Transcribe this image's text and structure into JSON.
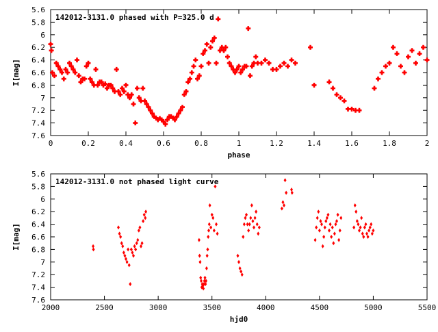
{
  "chart_data": [
    {
      "type": "scatter",
      "title": "142012-3131.0 phased with P=325.0 d",
      "xlabel": "phase",
      "ylabel": "I[mag]",
      "xlim": [
        0,
        2
      ],
      "ylim": [
        7.6,
        5.6
      ],
      "y_inverted": true,
      "grid": false,
      "xticks": [
        "0",
        "0.2",
        "0.4",
        "0.6",
        "0.8",
        "1",
        "1.2",
        "1.4",
        "1.6",
        "1.8",
        "2"
      ],
      "yticks": [
        "5.6",
        "5.8",
        "6",
        "6.2",
        "6.4",
        "6.6",
        "6.8",
        "7",
        "7.2",
        "7.4",
        "7.6"
      ],
      "marker_color": "#ff0000",
      "marker": "plus-heavy",
      "phases": [
        0.0,
        0.004,
        0.009,
        0.02,
        0.03,
        0.04,
        0.05,
        0.06,
        0.07,
        0.08,
        0.09,
        0.1,
        0.11,
        0.12,
        0.13,
        0.14,
        0.15,
        0.16,
        0.17,
        0.18,
        0.19,
        0.2,
        0.21,
        0.22,
        0.23,
        0.24,
        0.25,
        0.26,
        0.27,
        0.28,
        0.29,
        0.3,
        0.31,
        0.32,
        0.33,
        0.34,
        0.35,
        0.36,
        0.37,
        0.38,
        0.39,
        0.4,
        0.41,
        0.42,
        0.43,
        0.44,
        0.45,
        0.46,
        0.47,
        0.48,
        0.49,
        0.5,
        0.51,
        0.52,
        0.53,
        0.54,
        0.55,
        0.56,
        0.57,
        0.58,
        0.59,
        0.6,
        0.61,
        0.62,
        0.63,
        0.64,
        0.65,
        0.66,
        0.67,
        0.68,
        0.69,
        0.7,
        0.71,
        0.72,
        0.73,
        0.74,
        0.75,
        0.76,
        0.77,
        0.78,
        0.79,
        0.8,
        0.81,
        0.82,
        0.83,
        0.84,
        0.85,
        0.86,
        0.87,
        0.88,
        0.89,
        0.9,
        0.91,
        0.92,
        0.93,
        0.94,
        0.95,
        0.96,
        0.97,
        0.98,
        0.99,
        1.0,
        1.01,
        1.02,
        1.03,
        1.04,
        1.05,
        1.06,
        1.07,
        1.08,
        1.09,
        1.1,
        1.12,
        1.14,
        1.16,
        1.18,
        1.2,
        1.22,
        1.24,
        1.26,
        1.28,
        1.3,
        1.38,
        1.4,
        1.48,
        1.5,
        1.52,
        1.54,
        1.56,
        1.58,
        1.6,
        1.62,
        1.64,
        1.72,
        1.74,
        1.76,
        1.78,
        1.8,
        1.82,
        1.84,
        1.86,
        1.88,
        1.9,
        1.92,
        1.94,
        1.96,
        1.98,
        2.0
      ],
      "magnitudes": [
        6.15,
        6.25,
        6.6,
        6.65,
        6.45,
        6.5,
        6.55,
        6.6,
        6.7,
        6.55,
        6.6,
        6.45,
        6.5,
        6.55,
        6.6,
        6.4,
        6.65,
        6.75,
        6.7,
        6.7,
        6.5,
        6.45,
        6.7,
        6.75,
        6.8,
        6.55,
        6.8,
        6.75,
        6.75,
        6.8,
        6.78,
        6.85,
        6.8,
        6.8,
        6.85,
        6.9,
        6.55,
        6.9,
        6.95,
        6.85,
        6.9,
        6.8,
        6.95,
        7.0,
        6.95,
        7.1,
        7.4,
        6.85,
        7.0,
        7.05,
        6.85,
        7.05,
        7.1,
        7.15,
        7.2,
        7.25,
        7.3,
        7.32,
        7.35,
        7.33,
        7.35,
        7.38,
        7.42,
        7.35,
        7.3,
        7.3,
        7.32,
        7.35,
        7.3,
        7.25,
        7.2,
        7.15,
        6.95,
        6.9,
        6.75,
        6.7,
        6.6,
        6.5,
        6.4,
        6.7,
        6.65,
        6.5,
        6.3,
        6.25,
        6.15,
        6.45,
        6.2,
        6.1,
        6.05,
        6.45,
        5.75,
        6.25,
        6.2,
        6.25,
        6.2,
        6.35,
        6.45,
        6.5,
        6.55,
        6.6,
        6.55,
        6.5,
        6.6,
        6.55,
        6.5,
        6.5,
        5.9,
        6.65,
        6.5,
        6.45,
        6.35,
        6.45,
        6.45,
        6.4,
        6.45,
        6.55,
        6.55,
        6.5,
        6.45,
        6.5,
        6.4,
        6.45,
        6.2,
        6.8,
        6.75,
        6.85,
        6.95,
        7.0,
        7.05,
        7.18,
        7.18,
        7.2,
        7.2,
        6.85,
        6.7,
        6.6,
        6.5,
        6.45,
        6.2,
        6.3,
        6.5,
        6.6,
        6.35,
        6.25,
        6.45,
        6.3,
        6.2,
        6.4,
        6.45
      ]
    },
    {
      "type": "scatter",
      "title": "142012-3131.0 not phased light curve",
      "xlabel": "hjd0",
      "ylabel": "I[mag]",
      "xlim": [
        2000,
        5500
      ],
      "ylim": [
        7.6,
        5.6
      ],
      "y_inverted": true,
      "grid": false,
      "xticks": [
        "2000",
        "2500",
        "3000",
        "3500",
        "4000",
        "4500",
        "5000",
        "5500"
      ],
      "yticks": [
        "5.6",
        "5.8",
        "6",
        "6.2",
        "6.4",
        "6.6",
        "6.8",
        "7",
        "7.2",
        "7.4",
        "7.6"
      ],
      "marker_color": "#ff0000",
      "marker": "diamond",
      "hjd": [
        2395,
        2398,
        2630,
        2640,
        2650,
        2660,
        2670,
        2680,
        2690,
        2700,
        2710,
        2720,
        2730,
        2740,
        2750,
        2760,
        2770,
        2780,
        2790,
        2800,
        2810,
        2820,
        2830,
        2840,
        2850,
        2860,
        2870,
        2880,
        2885,
        3380,
        3385,
        3390,
        3395,
        3400,
        3405,
        3410,
        3415,
        3420,
        3425,
        3430,
        3435,
        3440,
        3445,
        3450,
        3455,
        3460,
        3465,
        3470,
        3475,
        3480,
        3490,
        3500,
        3510,
        3520,
        3530,
        3540,
        3550,
        3740,
        3750,
        3760,
        3770,
        3780,
        3790,
        3800,
        3810,
        3820,
        3830,
        3840,
        3850,
        3860,
        3870,
        3880,
        3890,
        3900,
        3910,
        3920,
        3930,
        3940,
        4150,
        4160,
        4170,
        4180,
        4190,
        4240,
        4245,
        4460,
        4470,
        4480,
        4490,
        4500,
        4510,
        4520,
        4530,
        4540,
        4550,
        4560,
        4570,
        4580,
        4590,
        4600,
        4610,
        4620,
        4630,
        4640,
        4650,
        4660,
        4670,
        4680,
        4690,
        4700,
        4820,
        4830,
        4840,
        4850,
        4860,
        4870,
        4880,
        4890,
        4900,
        4910,
        4920,
        4930,
        4940,
        4950,
        4960,
        4970,
        4980,
        4990,
        5000
      ],
      "magnitudes": [
        6.75,
        6.8,
        6.45,
        6.55,
        6.6,
        6.7,
        6.75,
        6.85,
        6.9,
        6.95,
        7.0,
        6.8,
        7.05,
        7.35,
        6.8,
        6.85,
        6.9,
        6.75,
        6.8,
        6.7,
        6.65,
        6.5,
        6.45,
        6.75,
        6.7,
        6.35,
        6.25,
        6.3,
        6.2,
        6.65,
        6.9,
        7.0,
        7.25,
        7.3,
        7.4,
        7.35,
        7.38,
        7.42,
        7.35,
        7.3,
        7.25,
        7.35,
        7.3,
        7.1,
        6.9,
        6.8,
        6.6,
        6.5,
        6.4,
        6.1,
        6.45,
        6.25,
        6.3,
        6.5,
        5.8,
        6.4,
        6.55,
        6.9,
        7.0,
        7.1,
        7.15,
        7.2,
        6.6,
        6.4,
        6.3,
        6.25,
        6.4,
        6.5,
        6.4,
        6.3,
        6.1,
        6.35,
        6.45,
        6.3,
        6.2,
        6.4,
        6.55,
        6.45,
        6.15,
        6.05,
        6.1,
        5.7,
        5.9,
        5.85,
        5.9,
        6.65,
        6.45,
        6.3,
        6.2,
        6.5,
        6.35,
        6.4,
        6.75,
        6.6,
        6.45,
        6.35,
        6.3,
        6.25,
        6.5,
        6.4,
        6.6,
        6.45,
        6.7,
        6.55,
        6.4,
        6.35,
        6.25,
        6.65,
        6.5,
        6.3,
        6.45,
        6.1,
        6.2,
        6.35,
        6.4,
        6.5,
        6.45,
        6.3,
        6.55,
        6.6,
        6.45,
        6.4,
        6.55,
        6.6,
        6.5,
        6.45,
        6.4,
        6.55,
        6.5,
        6.2
      ]
    }
  ]
}
